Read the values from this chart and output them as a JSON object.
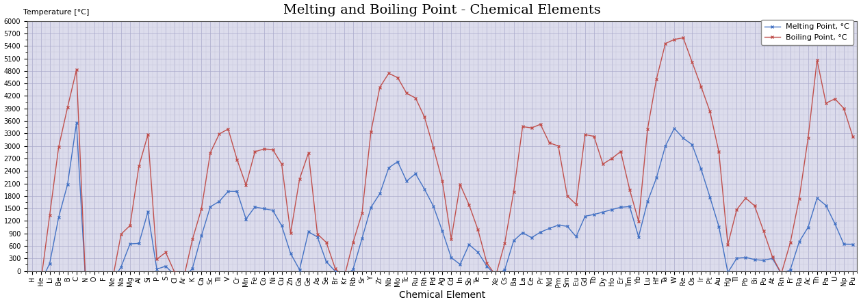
{
  "title": "Melting and Boiling Point - Chemical Elements",
  "xlabel": "Chemical Element",
  "ylabel": "Temperature [°C]",
  "legend_melting": "Melting Point, °C",
  "legend_boiling": "Boiling Point, °C",
  "melting_color": "#4472C4",
  "boiling_color": "#C0504D",
  "elements": [
    "H",
    "He",
    "Li",
    "Be",
    "B",
    "C",
    "N",
    "O",
    "F",
    "Ne",
    "Na",
    "Mg",
    "Al",
    "Si",
    "P",
    "S",
    "Cl",
    "Ar",
    "K",
    "Ca",
    "Sc",
    "Ti",
    "V",
    "Cr",
    "Mn",
    "Fe",
    "Co",
    "Ni",
    "Cu",
    "Zn",
    "Ga",
    "Ge",
    "As",
    "Se",
    "Br",
    "Kr",
    "Rb",
    "Sr",
    "Y",
    "Zr",
    "Nb",
    "Mo",
    "Tc",
    "Ru",
    "Rh",
    "Pd",
    "Ag",
    "Cd",
    "In",
    "Sb",
    "Te",
    "I",
    "Xe",
    "Cs",
    "Ba",
    "La",
    "Ce",
    "Pr",
    "Nd",
    "Pm",
    "Sm",
    "Eu",
    "Gd",
    "Tb",
    "Dy",
    "Ho",
    "Er",
    "Tm",
    "Yb",
    "Lu",
    "Hf",
    "Ta",
    "W",
    "Re",
    "Os",
    "Ir",
    "Pt",
    "Au",
    "Hg",
    "Tl",
    "Pb",
    "Bi",
    "Po",
    "At",
    "Rn",
    "Fr",
    "Ra",
    "Ac",
    "Th",
    "Pa",
    "U",
    "Np",
    "Pu"
  ],
  "melting": [
    -259,
    -272,
    181,
    1287,
    2076,
    3550,
    -210,
    -218,
    -220,
    -249,
    98,
    650,
    660,
    1414,
    44,
    115,
    -101,
    -189,
    64,
    842,
    1541,
    1668,
    1910,
    1907,
    1246,
    1538,
    1495,
    1455,
    1085,
    420,
    30,
    938,
    817,
    221,
    -7,
    -157,
    39,
    777,
    1526,
    1855,
    2477,
    2623,
    2157,
    2334,
    1964,
    1555,
    962,
    321,
    157,
    631,
    450,
    114,
    -112,
    29,
    727,
    920,
    799,
    931,
    1021,
    1100,
    1072,
    822,
    1313,
    1356,
    1412,
    1474,
    1529,
    1545,
    819,
    1663,
    2233,
    2996,
    3422,
    3186,
    3033,
    2446,
    1769,
    1064,
    -39,
    304,
    328,
    272,
    254,
    302,
    -71,
    27,
    700,
    1050,
    1750,
    1572,
    1135,
    644,
    640
  ],
  "boiling": [
    -253,
    -269,
    1342,
    2970,
    3927,
    4827,
    -196,
    -183,
    -188,
    -246,
    883,
    1090,
    2519,
    3265,
    281,
    445,
    -34,
    -186,
    759,
    1484,
    2836,
    3287,
    3407,
    2671,
    2061,
    2861,
    2927,
    2913,
    2562,
    907,
    2204,
    2833,
    887,
    685,
    59,
    -153,
    688,
    1382,
    3338,
    4409,
    4744,
    4639,
    4265,
    4150,
    3695,
    2963,
    2162,
    767,
    2072,
    1587,
    988,
    184,
    -108,
    671,
    1897,
    3464,
    3433,
    3520,
    3074,
    3000,
    1803,
    1596,
    3273,
    3230,
    2567,
    2700,
    2868,
    1950,
    1194,
    3402,
    4603,
    5458,
    5555,
    5596,
    5012,
    4428,
    3825,
    2856,
    630,
    1473,
    1749,
    1564,
    962,
    337,
    -62,
    677,
    1737,
    3198,
    5061,
    4027,
    4131,
    3902,
    3228
  ],
  "ylim_min": 0,
  "ylim_max": 6000,
  "ytick_step": 300,
  "bg_color": "#DCDCEC",
  "grid_major_color": "#AAAACC",
  "grid_minor_color": "#C8C8DC",
  "title_fontsize": 14,
  "axis_label_fontsize": 8,
  "tick_fontsize": 7,
  "legend_fontsize": 8
}
